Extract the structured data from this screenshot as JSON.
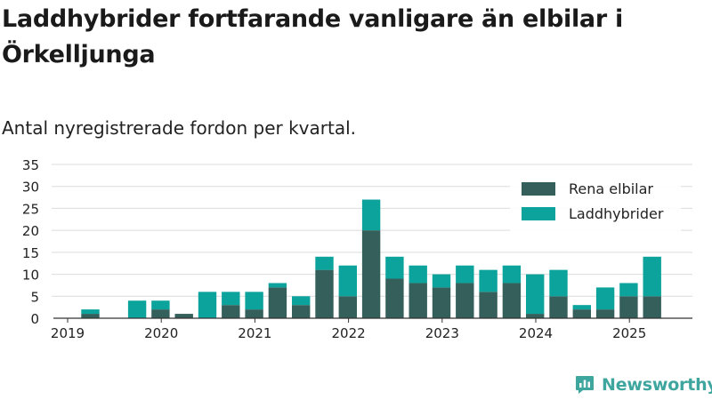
{
  "header": {
    "title": "Laddhybrider fortfarande vanligare än elbilar i Örkelljunga",
    "subtitle": "Antal nyregistrerade fordon per kvartal."
  },
  "brand": {
    "name": "Newsworthy",
    "icon": "newsworthy-logo-icon",
    "color": "#3fa59f"
  },
  "chart_data": {
    "type": "bar",
    "stacked": true,
    "categories": [
      "2019 Q1",
      "2019 Q2",
      "2019 Q3",
      "2019 Q4",
      "2020 Q1",
      "2020 Q2",
      "2020 Q3",
      "2020 Q4",
      "2021 Q1",
      "2021 Q2",
      "2021 Q3",
      "2021 Q4",
      "2022 Q1",
      "2022 Q2",
      "2022 Q3",
      "2022 Q4",
      "2023 Q1",
      "2023 Q2",
      "2023 Q3",
      "2023 Q4",
      "2024 Q1",
      "2024 Q2",
      "2024 Q3",
      "2024 Q4",
      "2025 Q1",
      "2025 Q2"
    ],
    "series": [
      {
        "name": "Rena elbilar",
        "color": "#355f5b",
        "values": [
          0,
          1,
          0,
          0,
          2,
          1,
          0,
          3,
          2,
          7,
          3,
          11,
          5,
          20,
          9,
          8,
          7,
          8,
          6,
          8,
          1,
          5,
          2,
          2,
          5,
          5
        ]
      },
      {
        "name": "Laddhybrider",
        "color": "#0ba39b",
        "values": [
          0,
          1,
          0,
          4,
          2,
          0,
          6,
          3,
          4,
          1,
          2,
          3,
          7,
          7,
          5,
          4,
          3,
          4,
          5,
          4,
          9,
          6,
          1,
          5,
          3,
          9
        ]
      }
    ],
    "x_tick_labels": [
      "2019",
      "2020",
      "2021",
      "2022",
      "2023",
      "2024",
      "2025"
    ],
    "y_ticks": [
      0,
      5,
      10,
      15,
      20,
      25,
      30,
      35
    ],
    "ylim": [
      0,
      35
    ],
    "grid": true,
    "legend_position": "top-right"
  }
}
